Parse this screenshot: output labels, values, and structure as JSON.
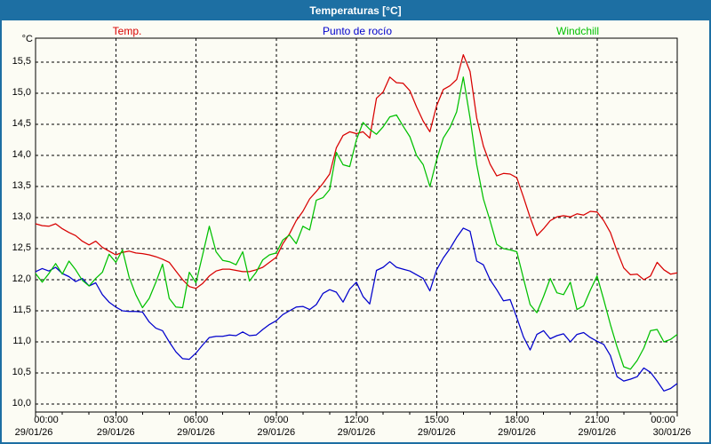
{
  "window": {
    "title": "Temperaturas [°C]"
  },
  "colors": {
    "titlebar": "#1d6fa3",
    "frame": "#1d6fa3",
    "background": "#fcfcf4",
    "grid": "#000000",
    "temp": "#d80000",
    "dewpoint": "#0000cc",
    "windchill": "#00c000"
  },
  "legend": {
    "items": [
      {
        "label": "Temp.",
        "color": "#d80000"
      },
      {
        "label": "Punto de rocío",
        "color": "#0000cc"
      },
      {
        "label": "Windchill",
        "color": "#00c000"
      }
    ]
  },
  "y_axis": {
    "unit": "°C",
    "tick_labels": [
      "15,5",
      "15,0",
      "14,5",
      "14,0",
      "13,5",
      "13,0",
      "12,5",
      "12,0",
      "11,5",
      "11,0",
      "10,5",
      "10,0"
    ],
    "tick_values": [
      15.5,
      15.0,
      14.5,
      14.0,
      13.5,
      13.0,
      12.5,
      12.0,
      11.5,
      11.0,
      10.5,
      10.0
    ]
  },
  "x_axis": {
    "ticks": [
      {
        "time": "00:00",
        "date": "29/01/26"
      },
      {
        "time": "03:00",
        "date": "29/01/26"
      },
      {
        "time": "06:00",
        "date": "29/01/26"
      },
      {
        "time": "09:00",
        "date": "29/01/26"
      },
      {
        "time": "12:00",
        "date": "29/01/26"
      },
      {
        "time": "15:00",
        "date": "29/01/26"
      },
      {
        "time": "18:00",
        "date": "29/01/26"
      },
      {
        "time": "21:00",
        "date": "29/01/26"
      },
      {
        "time": "00:00",
        "date": "30/01/26"
      }
    ]
  },
  "chart_data": {
    "type": "line",
    "title": "Temperaturas [°C]",
    "xlabel": "",
    "ylabel": "°C",
    "ylim": [
      10.0,
      15.5
    ],
    "grid": "dashed",
    "legend_position": "top",
    "x_unit": "hours",
    "x_start": 0,
    "x_step": 0.25,
    "x_end": 24,
    "x_tick_hours": [
      0,
      3,
      6,
      9,
      12,
      15,
      18,
      21,
      24
    ],
    "series": [
      {
        "name": "Temp.",
        "color": "#d80000",
        "values": [
          12.9,
          12.87,
          12.86,
          12.9,
          12.82,
          12.76,
          12.71,
          12.62,
          12.56,
          12.62,
          12.52,
          12.46,
          12.4,
          12.44,
          12.46,
          12.43,
          12.42,
          12.4,
          12.37,
          12.33,
          12.28,
          12.14,
          12.0,
          11.89,
          11.86,
          11.94,
          12.06,
          12.14,
          12.17,
          12.17,
          12.15,
          12.13,
          12.13,
          12.16,
          12.2,
          12.28,
          12.36,
          12.58,
          12.74,
          12.95,
          13.1,
          13.3,
          13.42,
          13.55,
          13.7,
          14.12,
          14.32,
          14.38,
          14.35,
          14.38,
          14.28,
          14.92,
          15.02,
          15.26,
          15.17,
          15.16,
          15.04,
          14.78,
          14.55,
          14.38,
          14.8,
          15.06,
          15.12,
          15.22,
          15.62,
          15.35,
          14.6,
          14.15,
          13.86,
          13.67,
          13.71,
          13.7,
          13.64,
          13.33,
          13.0,
          12.71,
          12.82,
          12.95,
          13.01,
          13.03,
          13.01,
          13.06,
          13.04,
          13.1,
          13.09,
          12.95,
          12.76,
          12.46,
          12.19,
          12.08,
          12.09,
          12.0,
          12.06,
          12.28,
          12.16,
          12.09,
          12.11
        ]
      },
      {
        "name": "Punto de rocío",
        "color": "#0000cc",
        "values": [
          12.13,
          12.18,
          12.14,
          12.2,
          12.1,
          12.05,
          11.97,
          12.02,
          11.9,
          11.95,
          11.76,
          11.64,
          11.56,
          11.5,
          11.49,
          11.49,
          11.48,
          11.32,
          11.22,
          11.18,
          11.0,
          10.84,
          10.73,
          10.72,
          10.82,
          10.95,
          11.07,
          11.09,
          11.09,
          11.11,
          11.1,
          11.16,
          11.1,
          11.11,
          11.2,
          11.28,
          11.34,
          11.44,
          11.5,
          11.56,
          11.57,
          11.52,
          11.6,
          11.78,
          11.84,
          11.8,
          11.64,
          11.85,
          11.96,
          11.73,
          11.61,
          12.15,
          12.2,
          12.29,
          12.2,
          12.17,
          12.14,
          12.08,
          12.02,
          11.82,
          12.16,
          12.35,
          12.5,
          12.68,
          12.83,
          12.78,
          12.3,
          12.24,
          12.0,
          11.84,
          11.66,
          11.68,
          11.39,
          11.08,
          10.87,
          11.12,
          11.18,
          11.05,
          11.1,
          11.13,
          11.0,
          11.12,
          11.15,
          11.07,
          11.01,
          10.96,
          10.78,
          10.44,
          10.37,
          10.4,
          10.44,
          10.58,
          10.51,
          10.37,
          10.21,
          10.25,
          10.33
        ]
      },
      {
        "name": "Windchill",
        "color": "#00c000",
        "values": [
          12.1,
          11.96,
          12.1,
          12.26,
          12.09,
          12.3,
          12.16,
          11.99,
          11.9,
          12.02,
          12.12,
          12.41,
          12.28,
          12.48,
          12.04,
          11.76,
          11.55,
          11.7,
          11.96,
          12.25,
          11.7,
          11.56,
          11.55,
          12.12,
          11.95,
          12.4,
          12.86,
          12.45,
          12.31,
          12.29,
          12.24,
          12.45,
          11.98,
          12.12,
          12.32,
          12.4,
          12.43,
          12.64,
          12.72,
          12.58,
          12.86,
          12.8,
          13.28,
          13.32,
          13.45,
          14.05,
          13.85,
          13.82,
          14.25,
          14.53,
          14.42,
          14.34,
          14.46,
          14.62,
          14.65,
          14.47,
          14.3,
          14.0,
          13.85,
          13.5,
          13.93,
          14.28,
          14.45,
          14.7,
          15.26,
          14.6,
          13.85,
          13.3,
          12.95,
          12.57,
          12.5,
          12.48,
          12.45,
          12.02,
          11.6,
          11.47,
          11.73,
          12.02,
          11.79,
          11.76,
          11.96,
          11.52,
          11.58,
          11.83,
          12.06,
          11.68,
          11.28,
          10.92,
          10.6,
          10.56,
          10.7,
          10.9,
          11.18,
          11.2,
          11.0,
          11.04,
          11.12
        ]
      }
    ]
  }
}
